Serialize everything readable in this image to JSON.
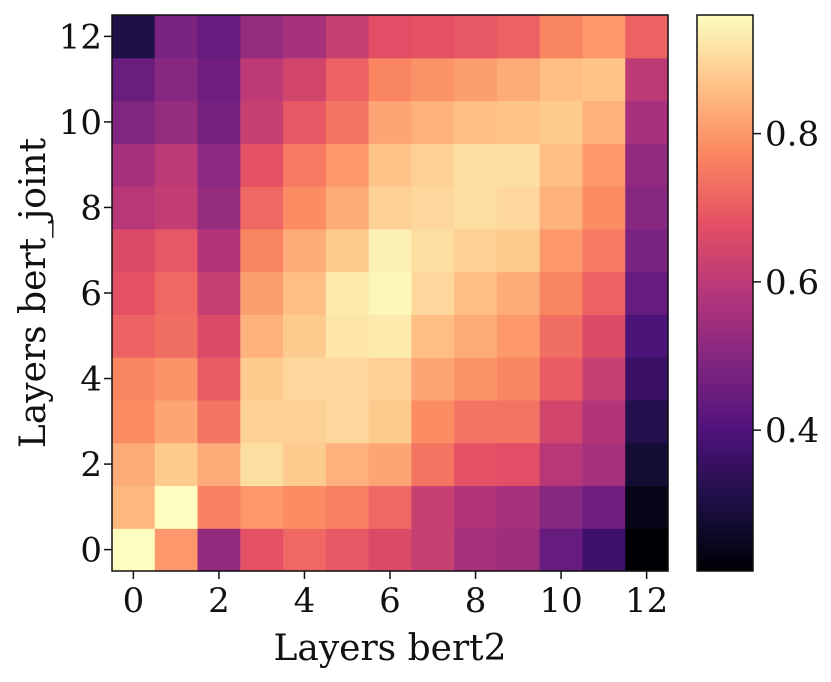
{
  "chart_data": {
    "type": "heatmap",
    "title": "",
    "xlabel": "Layers bert2",
    "ylabel": "Layers bert_joint",
    "x": [
      0,
      1,
      2,
      3,
      4,
      5,
      6,
      7,
      8,
      9,
      10,
      11,
      12
    ],
    "y": [
      0,
      1,
      2,
      3,
      4,
      5,
      6,
      7,
      8,
      9,
      10,
      11,
      12
    ],
    "xticks": [
      0,
      2,
      4,
      6,
      8,
      10,
      12
    ],
    "yticks": [
      0,
      2,
      4,
      6,
      8,
      10,
      12
    ],
    "xlim": [
      -0.5,
      12.5
    ],
    "ylim": [
      -0.5,
      12.5
    ],
    "colormap": "magma",
    "colorbar": {
      "min": 0.21,
      "max": 0.96,
      "ticks": [
        0.4,
        0.6,
        0.8
      ],
      "tick_labels": [
        "0.4",
        "0.6",
        "0.8"
      ]
    },
    "values": [
      [
        0.96,
        0.8,
        0.52,
        0.68,
        0.72,
        0.69,
        0.66,
        0.62,
        0.56,
        0.54,
        0.44,
        0.37,
        0.21
      ],
      [
        0.85,
        0.96,
        0.76,
        0.8,
        0.78,
        0.76,
        0.72,
        0.62,
        0.58,
        0.56,
        0.5,
        0.46,
        0.24
      ],
      [
        0.83,
        0.88,
        0.83,
        0.91,
        0.88,
        0.84,
        0.82,
        0.74,
        0.68,
        0.67,
        0.59,
        0.56,
        0.28
      ],
      [
        0.78,
        0.82,
        0.74,
        0.89,
        0.89,
        0.9,
        0.88,
        0.78,
        0.74,
        0.74,
        0.64,
        0.58,
        0.32
      ],
      [
        0.77,
        0.79,
        0.7,
        0.88,
        0.9,
        0.9,
        0.89,
        0.82,
        0.79,
        0.77,
        0.7,
        0.62,
        0.36
      ],
      [
        0.71,
        0.73,
        0.66,
        0.84,
        0.88,
        0.92,
        0.93,
        0.86,
        0.83,
        0.8,
        0.73,
        0.66,
        0.39
      ],
      [
        0.68,
        0.72,
        0.62,
        0.81,
        0.86,
        0.93,
        0.95,
        0.9,
        0.86,
        0.83,
        0.77,
        0.71,
        0.44
      ],
      [
        0.66,
        0.69,
        0.58,
        0.77,
        0.83,
        0.88,
        0.94,
        0.91,
        0.89,
        0.88,
        0.8,
        0.75,
        0.48
      ],
      [
        0.59,
        0.61,
        0.53,
        0.72,
        0.78,
        0.83,
        0.89,
        0.9,
        0.91,
        0.9,
        0.84,
        0.78,
        0.5
      ],
      [
        0.56,
        0.6,
        0.51,
        0.68,
        0.75,
        0.8,
        0.87,
        0.89,
        0.91,
        0.91,
        0.86,
        0.8,
        0.52
      ],
      [
        0.49,
        0.53,
        0.47,
        0.62,
        0.69,
        0.74,
        0.82,
        0.84,
        0.86,
        0.87,
        0.88,
        0.84,
        0.56
      ],
      [
        0.45,
        0.5,
        0.46,
        0.6,
        0.64,
        0.71,
        0.77,
        0.79,
        0.81,
        0.83,
        0.86,
        0.87,
        0.6
      ],
      [
        0.31,
        0.48,
        0.44,
        0.53,
        0.56,
        0.62,
        0.67,
        0.68,
        0.69,
        0.71,
        0.77,
        0.8,
        0.71
      ]
    ]
  }
}
